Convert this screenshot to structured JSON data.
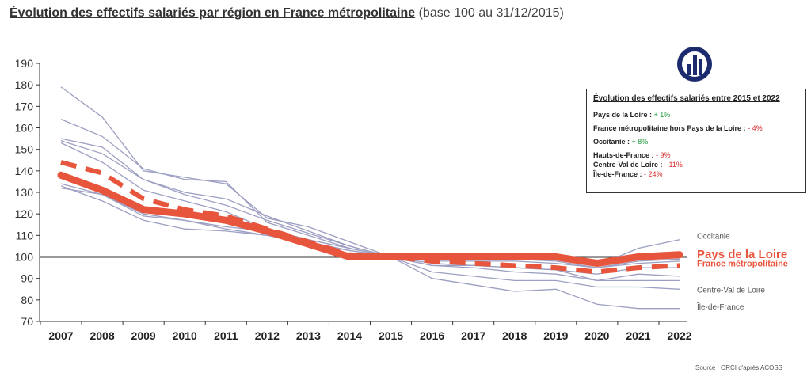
{
  "title": {
    "main": "Évolution des effectifs salariés par région en France métropolitaine",
    "sub": "(base 100 au 31/12/2015)"
  },
  "infobox": {
    "title": "Évolution des effectifs salariés entre 2015 et 2022",
    "rows": [
      {
        "label": "Pays de la Loire :",
        "value": "+ 1%",
        "sign": "pos"
      },
      {
        "label": "France métropolitaine hors Pays de la Loire :",
        "value": "- 4%",
        "sign": "neg"
      },
      {
        "label": "Occitanie :",
        "value": "+ 8%",
        "sign": "pos"
      },
      {
        "label": "Hauts-de-France :",
        "value": "- 9%",
        "sign": "neg"
      },
      {
        "label": "Centre-Val de Loire :",
        "value": "- 11%",
        "sign": "neg"
      },
      {
        "label": "Île-de-France :",
        "value": "- 24%",
        "sign": "neg"
      }
    ]
  },
  "source": "Source : ORCI d'après ACOSS",
  "colors": {
    "highlight": "#e8553d",
    "region": "#9c9fc2",
    "baseline": "#333333",
    "logo": "#1c2a6e",
    "positive": "#1c9b3c",
    "negative": "#d92b2b"
  },
  "logo_icon": "bar-chart-logo-icon",
  "chart_data": {
    "type": "line",
    "ylim": [
      70,
      190
    ],
    "yticks": [
      70,
      80,
      90,
      100,
      110,
      120,
      130,
      140,
      150,
      160,
      170,
      180,
      190
    ],
    "categories": [
      "2007",
      "2008",
      "2009",
      "2010",
      "2011",
      "2012",
      "2013",
      "2014",
      "2015",
      "2016",
      "2017",
      "2018",
      "2019",
      "2020",
      "2021",
      "2022"
    ],
    "reference_line": 100,
    "grid": false,
    "series": [
      {
        "name": "Pays de la Loire",
        "style": "highlight-solid",
        "values": [
          138,
          131,
          122,
          120,
          117,
          112,
          106,
          100,
          100,
          100,
          100,
          100,
          100,
          97,
          100,
          101
        ]
      },
      {
        "name": "France métropolitaine",
        "style": "highlight-dashed",
        "values": [
          144,
          139,
          127,
          122,
          119,
          113,
          107,
          101,
          100,
          98,
          97,
          96,
          95,
          93,
          95,
          96
        ]
      },
      {
        "name": "Occitanie",
        "style": "region",
        "values": [
          132,
          129,
          120,
          117,
          113,
          110,
          107,
          103,
          100,
          100,
          100,
          101,
          101,
          96,
          104,
          108
        ]
      },
      {
        "name": "Centre-Val de Loire",
        "style": "region",
        "values": [
          154,
          148,
          136,
          129,
          124,
          117,
          111,
          105,
          100,
          93,
          91,
          89,
          89,
          86,
          86,
          85
        ]
      },
      {
        "name": "Île-de-France",
        "style": "region",
        "values": [
          179,
          165,
          140,
          137,
          134,
          118,
          114,
          107,
          100,
          90,
          87,
          84,
          85,
          78,
          76,
          76
        ]
      },
      {
        "style": "region",
        "values": [
          164,
          156,
          141,
          136,
          135,
          116,
          110,
          104,
          100,
          96,
          96,
          95,
          94,
          89,
          92,
          91
        ]
      },
      {
        "style": "region",
        "values": [
          155,
          151,
          136,
          130,
          127,
          119,
          112,
          105,
          100,
          97,
          96,
          95,
          94,
          92,
          95,
          95
        ]
      },
      {
        "style": "region",
        "values": [
          153,
          144,
          131,
          126,
          121,
          113,
          108,
          104,
          100,
          98,
          98,
          98,
          97,
          95,
          97,
          98
        ]
      },
      {
        "style": "region",
        "values": [
          134,
          129,
          119,
          117,
          114,
          112,
          108,
          104,
          100,
          99,
          99,
          99,
          98,
          95,
          98,
          99
        ]
      },
      {
        "style": "region",
        "values": [
          133,
          126,
          117,
          113,
          112,
          110,
          106,
          103,
          100,
          96,
          95,
          93,
          92,
          89,
          89,
          89
        ]
      }
    ],
    "end_labels": [
      {
        "text": "Occitanie",
        "value": 110,
        "style": "region"
      },
      {
        "text": "Pays de la Loire",
        "value": 101,
        "style": "highlight-big"
      },
      {
        "text": "France métropolitaine",
        "value": 97,
        "style": "highlight-small"
      },
      {
        "text": "Centre-Val de Loire",
        "value": 85,
        "style": "region"
      },
      {
        "text": "Île-de-France",
        "value": 77,
        "style": "region"
      }
    ]
  }
}
